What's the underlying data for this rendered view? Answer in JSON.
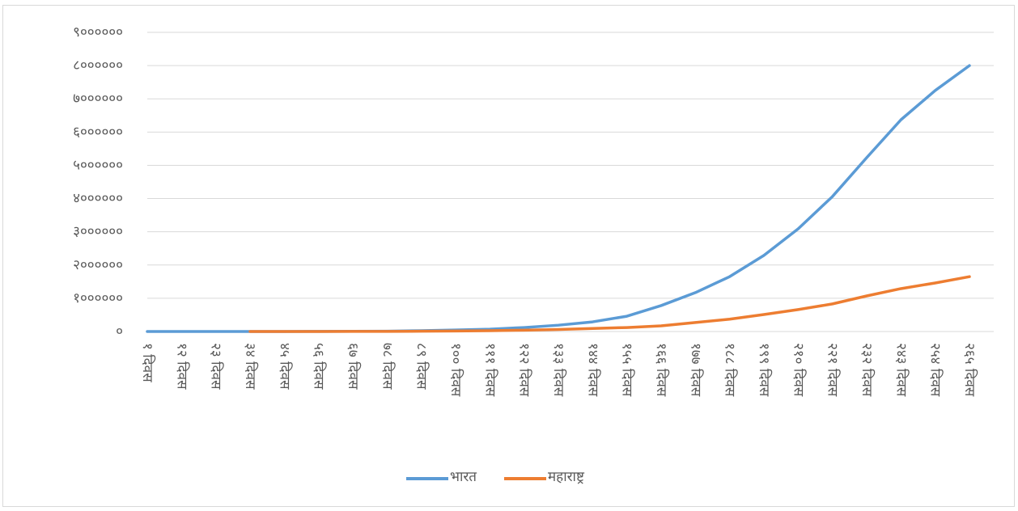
{
  "chart_data": {
    "type": "line",
    "categories": [
      "१ दिवस",
      "१२ दिवस",
      "२३ दिवस",
      "३४ दिवस",
      "४५ दिवस",
      "५६ दिवस",
      "६७ दिवस",
      "७८ दिवस",
      "८९ दिवस",
      "१०० दिवस",
      "१११ दिवस",
      "१२२ दिवस",
      "१३३ दिवस",
      "१४४ दिवस",
      "१५५ दिवस",
      "१६६ दिवस",
      "१७७ दिवस",
      "१८८ दिवस",
      "१९९ दिवस",
      "२१० दिवस",
      "२२१ दिवस",
      "२३२ दिवस",
      "२४३ दिवस",
      "२५४ दिवस",
      "२६५ दिवस"
    ],
    "series": [
      {
        "name": "भारत",
        "color": "#5b9bd5",
        "values": [
          0,
          0,
          100,
          500,
          1000,
          2000,
          5000,
          10000,
          25000,
          45000,
          70000,
          120000,
          190000,
          290000,
          460000,
          780000,
          1170000,
          1650000,
          2290000,
          3090000,
          4060000,
          5230000,
          6370000,
          7250000,
          8000000
        ]
      },
      {
        "name": "महाराष्ट्र",
        "color": "#ed7d31",
        "values": [
          null,
          null,
          null,
          100,
          500,
          1000,
          2000,
          4000,
          8000,
          15000,
          25000,
          40000,
          60000,
          90000,
          120000,
          170000,
          270000,
          370000,
          510000,
          660000,
          830000,
          1070000,
          1290000,
          1460000,
          1650000
        ]
      }
    ],
    "ylim": [
      0,
      9000000
    ],
    "yticks": [
      {
        "value": 0,
        "label": "०"
      },
      {
        "value": 1000000,
        "label": "१००००००"
      },
      {
        "value": 2000000,
        "label": "२००००००"
      },
      {
        "value": 3000000,
        "label": "३००००००"
      },
      {
        "value": 4000000,
        "label": "४००००००"
      },
      {
        "value": 5000000,
        "label": "५००००००"
      },
      {
        "value": 6000000,
        "label": "६००००००"
      },
      {
        "value": 7000000,
        "label": "७००००००"
      },
      {
        "value": 8000000,
        "label": "८००००००"
      },
      {
        "value": 9000000,
        "label": "९००००००"
      }
    ],
    "grid": true,
    "legend": "bottom"
  }
}
